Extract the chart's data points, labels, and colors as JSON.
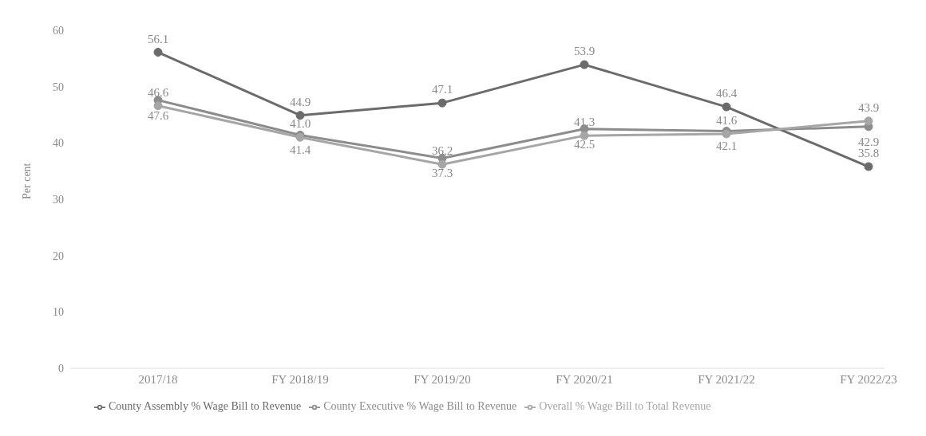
{
  "chart_data": {
    "type": "line",
    "ylabel": "Per cent",
    "categories": [
      "2017/18",
      "FY 2018/19",
      "FY 2019/20",
      "FY 2020/21",
      "FY 2021/22",
      "FY 2022/23"
    ],
    "series": [
      {
        "name": "County Executive % Wage Bill to Revenue",
        "color": "#8c8c8c",
        "values": [
          47.6,
          41.4,
          37.3,
          42.5,
          42.1,
          42.9
        ],
        "value_labels": [
          "47.6",
          "41.4",
          "37.3",
          "42.5",
          "42.1",
          "42.9"
        ]
      },
      {
        "name": "County Assembly % Wage Bill to Revenue",
        "color": "#6b6b6b",
        "values": [
          56.1,
          44.9,
          47.1,
          53.9,
          46.4,
          35.8
        ],
        "value_labels": [
          "56.1",
          "44.9",
          "47.1",
          "53.9",
          "46.4",
          "35.8"
        ]
      },
      {
        "name": "Overall % Wage Bill to Total Revenue",
        "color": "#a6a6a6",
        "values": [
          46.6,
          41.0,
          36.2,
          41.3,
          41.6,
          43.9
        ],
        "value_labels": [
          "46.6",
          "41.0",
          "36.2",
          "41.3",
          "41.6",
          "43.9"
        ]
      }
    ],
    "ylim": [
      0,
      60
    ],
    "yticks": [
      0,
      10,
      20,
      30,
      40,
      50,
      60
    ],
    "legend": "bottom",
    "marker": "circle",
    "line_style": "solid"
  }
}
